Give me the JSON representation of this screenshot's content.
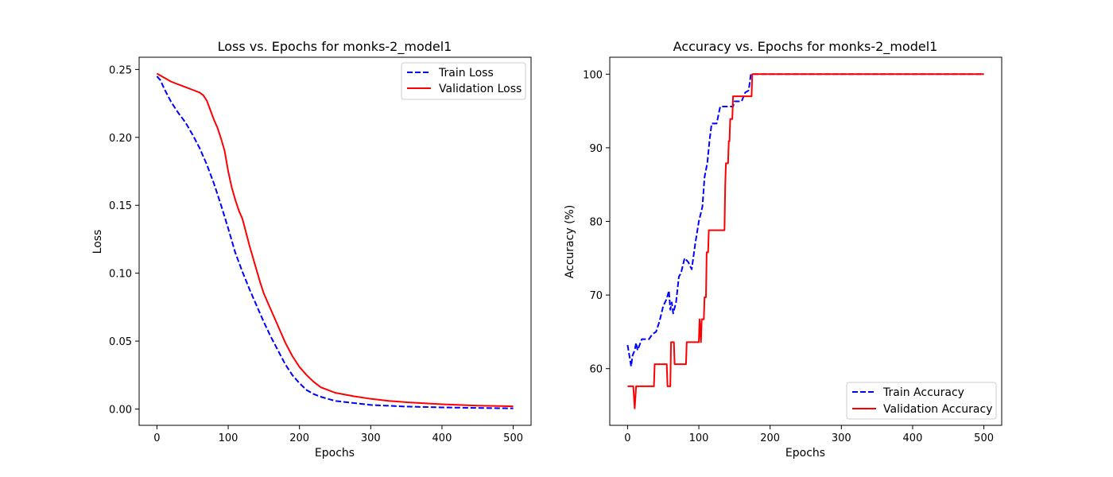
{
  "chart_data": [
    {
      "type": "line",
      "title": "Loss vs. Epochs for monks-2_model1",
      "xlabel": "Epochs",
      "ylabel": "Loss",
      "xlim": [
        -25,
        525
      ],
      "ylim": [
        -0.012,
        0.259
      ],
      "xticks": [
        0,
        100,
        200,
        300,
        400,
        500
      ],
      "xtick_labels": [
        "0",
        "100",
        "200",
        "300",
        "400",
        "500"
      ],
      "yticks": [
        0.0,
        0.05,
        0.1,
        0.15,
        0.2,
        0.25
      ],
      "ytick_labels": [
        "0.00",
        "0.05",
        "0.10",
        "0.15",
        "0.20",
        "0.25"
      ],
      "grid": false,
      "legend_position": "top-right",
      "series": [
        {
          "name": "Train Loss",
          "color": "#0000ff",
          "style": "dashed",
          "points": [
            [
              0,
              0.245
            ],
            [
              5,
              0.242
            ],
            [
              10,
              0.236
            ],
            [
              20,
              0.226
            ],
            [
              30,
              0.218
            ],
            [
              40,
              0.211
            ],
            [
              50,
              0.202
            ],
            [
              60,
              0.192
            ],
            [
              70,
              0.18
            ],
            [
              80,
              0.166
            ],
            [
              90,
              0.15
            ],
            [
              100,
              0.133
            ],
            [
              110,
              0.115
            ],
            [
              120,
              0.101
            ],
            [
              130,
              0.088
            ],
            [
              140,
              0.076
            ],
            [
              150,
              0.064
            ],
            [
              160,
              0.053
            ],
            [
              170,
              0.043
            ],
            [
              180,
              0.033
            ],
            [
              190,
              0.025
            ],
            [
              200,
              0.019
            ],
            [
              210,
              0.014
            ],
            [
              220,
              0.011
            ],
            [
              230,
              0.009
            ],
            [
              250,
              0.006
            ],
            [
              275,
              0.0045
            ],
            [
              300,
              0.003
            ],
            [
              350,
              0.0018
            ],
            [
              400,
              0.0012
            ],
            [
              450,
              0.0008
            ],
            [
              500,
              0.0005
            ]
          ]
        },
        {
          "name": "Validation Loss",
          "color": "#ff0000",
          "style": "solid",
          "points": [
            [
              0,
              0.247
            ],
            [
              10,
              0.244
            ],
            [
              20,
              0.241
            ],
            [
              30,
              0.239
            ],
            [
              40,
              0.237
            ],
            [
              50,
              0.235
            ],
            [
              60,
              0.233
            ],
            [
              65,
              0.231
            ],
            [
              70,
              0.227
            ],
            [
              75,
              0.22
            ],
            [
              80,
              0.213
            ],
            [
              85,
              0.207
            ],
            [
              90,
              0.199
            ],
            [
              95,
              0.19
            ],
            [
              100,
              0.175
            ],
            [
              105,
              0.163
            ],
            [
              110,
              0.154
            ],
            [
              115,
              0.146
            ],
            [
              120,
              0.14
            ],
            [
              125,
              0.13
            ],
            [
              130,
              0.12
            ],
            [
              135,
              0.111
            ],
            [
              140,
              0.102
            ],
            [
              145,
              0.093
            ],
            [
              150,
              0.085
            ],
            [
              160,
              0.073
            ],
            [
              170,
              0.061
            ],
            [
              180,
              0.049
            ],
            [
              190,
              0.039
            ],
            [
              200,
              0.031
            ],
            [
              210,
              0.025
            ],
            [
              220,
              0.02
            ],
            [
              230,
              0.016
            ],
            [
              240,
              0.014
            ],
            [
              250,
              0.012
            ],
            [
              275,
              0.0095
            ],
            [
              300,
              0.0075
            ],
            [
              325,
              0.006
            ],
            [
              350,
              0.005
            ],
            [
              400,
              0.0035
            ],
            [
              450,
              0.0025
            ],
            [
              500,
              0.002
            ]
          ]
        }
      ]
    },
    {
      "type": "line",
      "title": "Accuracy vs. Epochs for monks-2_model1",
      "xlabel": "Epochs",
      "ylabel": "Accuracy (%)",
      "xlim": [
        -25,
        525
      ],
      "ylim": [
        52.3,
        102.3
      ],
      "xticks": [
        0,
        100,
        200,
        300,
        400,
        500
      ],
      "xtick_labels": [
        "0",
        "100",
        "200",
        "300",
        "400",
        "500"
      ],
      "yticks": [
        60,
        70,
        80,
        90,
        100
      ],
      "ytick_labels": [
        "60",
        "70",
        "80",
        "90",
        "100"
      ],
      "grid": false,
      "legend_position": "bottom-right",
      "series": [
        {
          "name": "Train Accuracy",
          "color": "#0000ff",
          "style": "dashed",
          "points": [
            [
              0,
              63.2
            ],
            [
              3,
              61.5
            ],
            [
              5,
              60.3
            ],
            [
              7,
              61.8
            ],
            [
              10,
              62.5
            ],
            [
              12,
              63.5
            ],
            [
              14,
              62.5
            ],
            [
              20,
              64.0
            ],
            [
              25,
              64.0
            ],
            [
              30,
              64.0
            ],
            [
              35,
              64.7
            ],
            [
              40,
              65.0
            ],
            [
              45,
              66.5
            ],
            [
              50,
              68.5
            ],
            [
              55,
              69.5
            ],
            [
              58,
              70.6
            ],
            [
              60,
              68.0
            ],
            [
              62,
              69.0
            ],
            [
              64,
              67.5
            ],
            [
              68,
              69.0
            ],
            [
              72,
              72.5
            ],
            [
              75,
              73.0
            ],
            [
              80,
              75.0
            ],
            [
              85,
              74.5
            ],
            [
              90,
              73.5
            ],
            [
              95,
              77.0
            ],
            [
              100,
              80.0
            ],
            [
              105,
              82.0
            ],
            [
              108,
              86.0
            ],
            [
              112,
              88.0
            ],
            [
              115,
              91.0
            ],
            [
              118,
              93.3
            ],
            [
              125,
              93.3
            ],
            [
              130,
              95.6
            ],
            [
              140,
              95.6
            ],
            [
              148,
              95.6
            ],
            [
              150,
              96.3
            ],
            [
              160,
              96.3
            ],
            [
              165,
              97.5
            ],
            [
              170,
              97.8
            ],
            [
              173,
              100
            ],
            [
              178,
              100
            ],
            [
              500,
              100
            ]
          ]
        },
        {
          "name": "Validation Accuracy",
          "color": "#ff0000",
          "style": "solid",
          "points": [
            [
              0,
              57.6
            ],
            [
              8,
              57.6
            ],
            [
              10,
              54.6
            ],
            [
              12,
              57.6
            ],
            [
              37,
              57.6
            ],
            [
              38,
              60.6
            ],
            [
              55,
              60.6
            ],
            [
              56,
              57.6
            ],
            [
              60,
              57.6
            ],
            [
              61,
              63.6
            ],
            [
              65,
              63.6
            ],
            [
              66,
              60.6
            ],
            [
              82,
              60.6
            ],
            [
              83,
              63.6
            ],
            [
              100,
              63.6
            ],
            [
              101,
              66.7
            ],
            [
              103,
              63.6
            ],
            [
              104,
              66.7
            ],
            [
              107,
              66.7
            ],
            [
              108,
              69.7
            ],
            [
              110,
              69.7
            ],
            [
              111,
              75.8
            ],
            [
              113,
              75.8
            ],
            [
              114,
              78.8
            ],
            [
              136,
              78.8
            ],
            [
              137,
              84.8
            ],
            [
              138,
              87.9
            ],
            [
              141,
              87.9
            ],
            [
              142,
              90.9
            ],
            [
              143,
              90.9
            ],
            [
              144,
              93.9
            ],
            [
              147,
              93.9
            ],
            [
              148,
              97.0
            ],
            [
              174,
              97.0
            ],
            [
              175,
              100
            ],
            [
              500,
              100
            ]
          ]
        }
      ]
    }
  ]
}
